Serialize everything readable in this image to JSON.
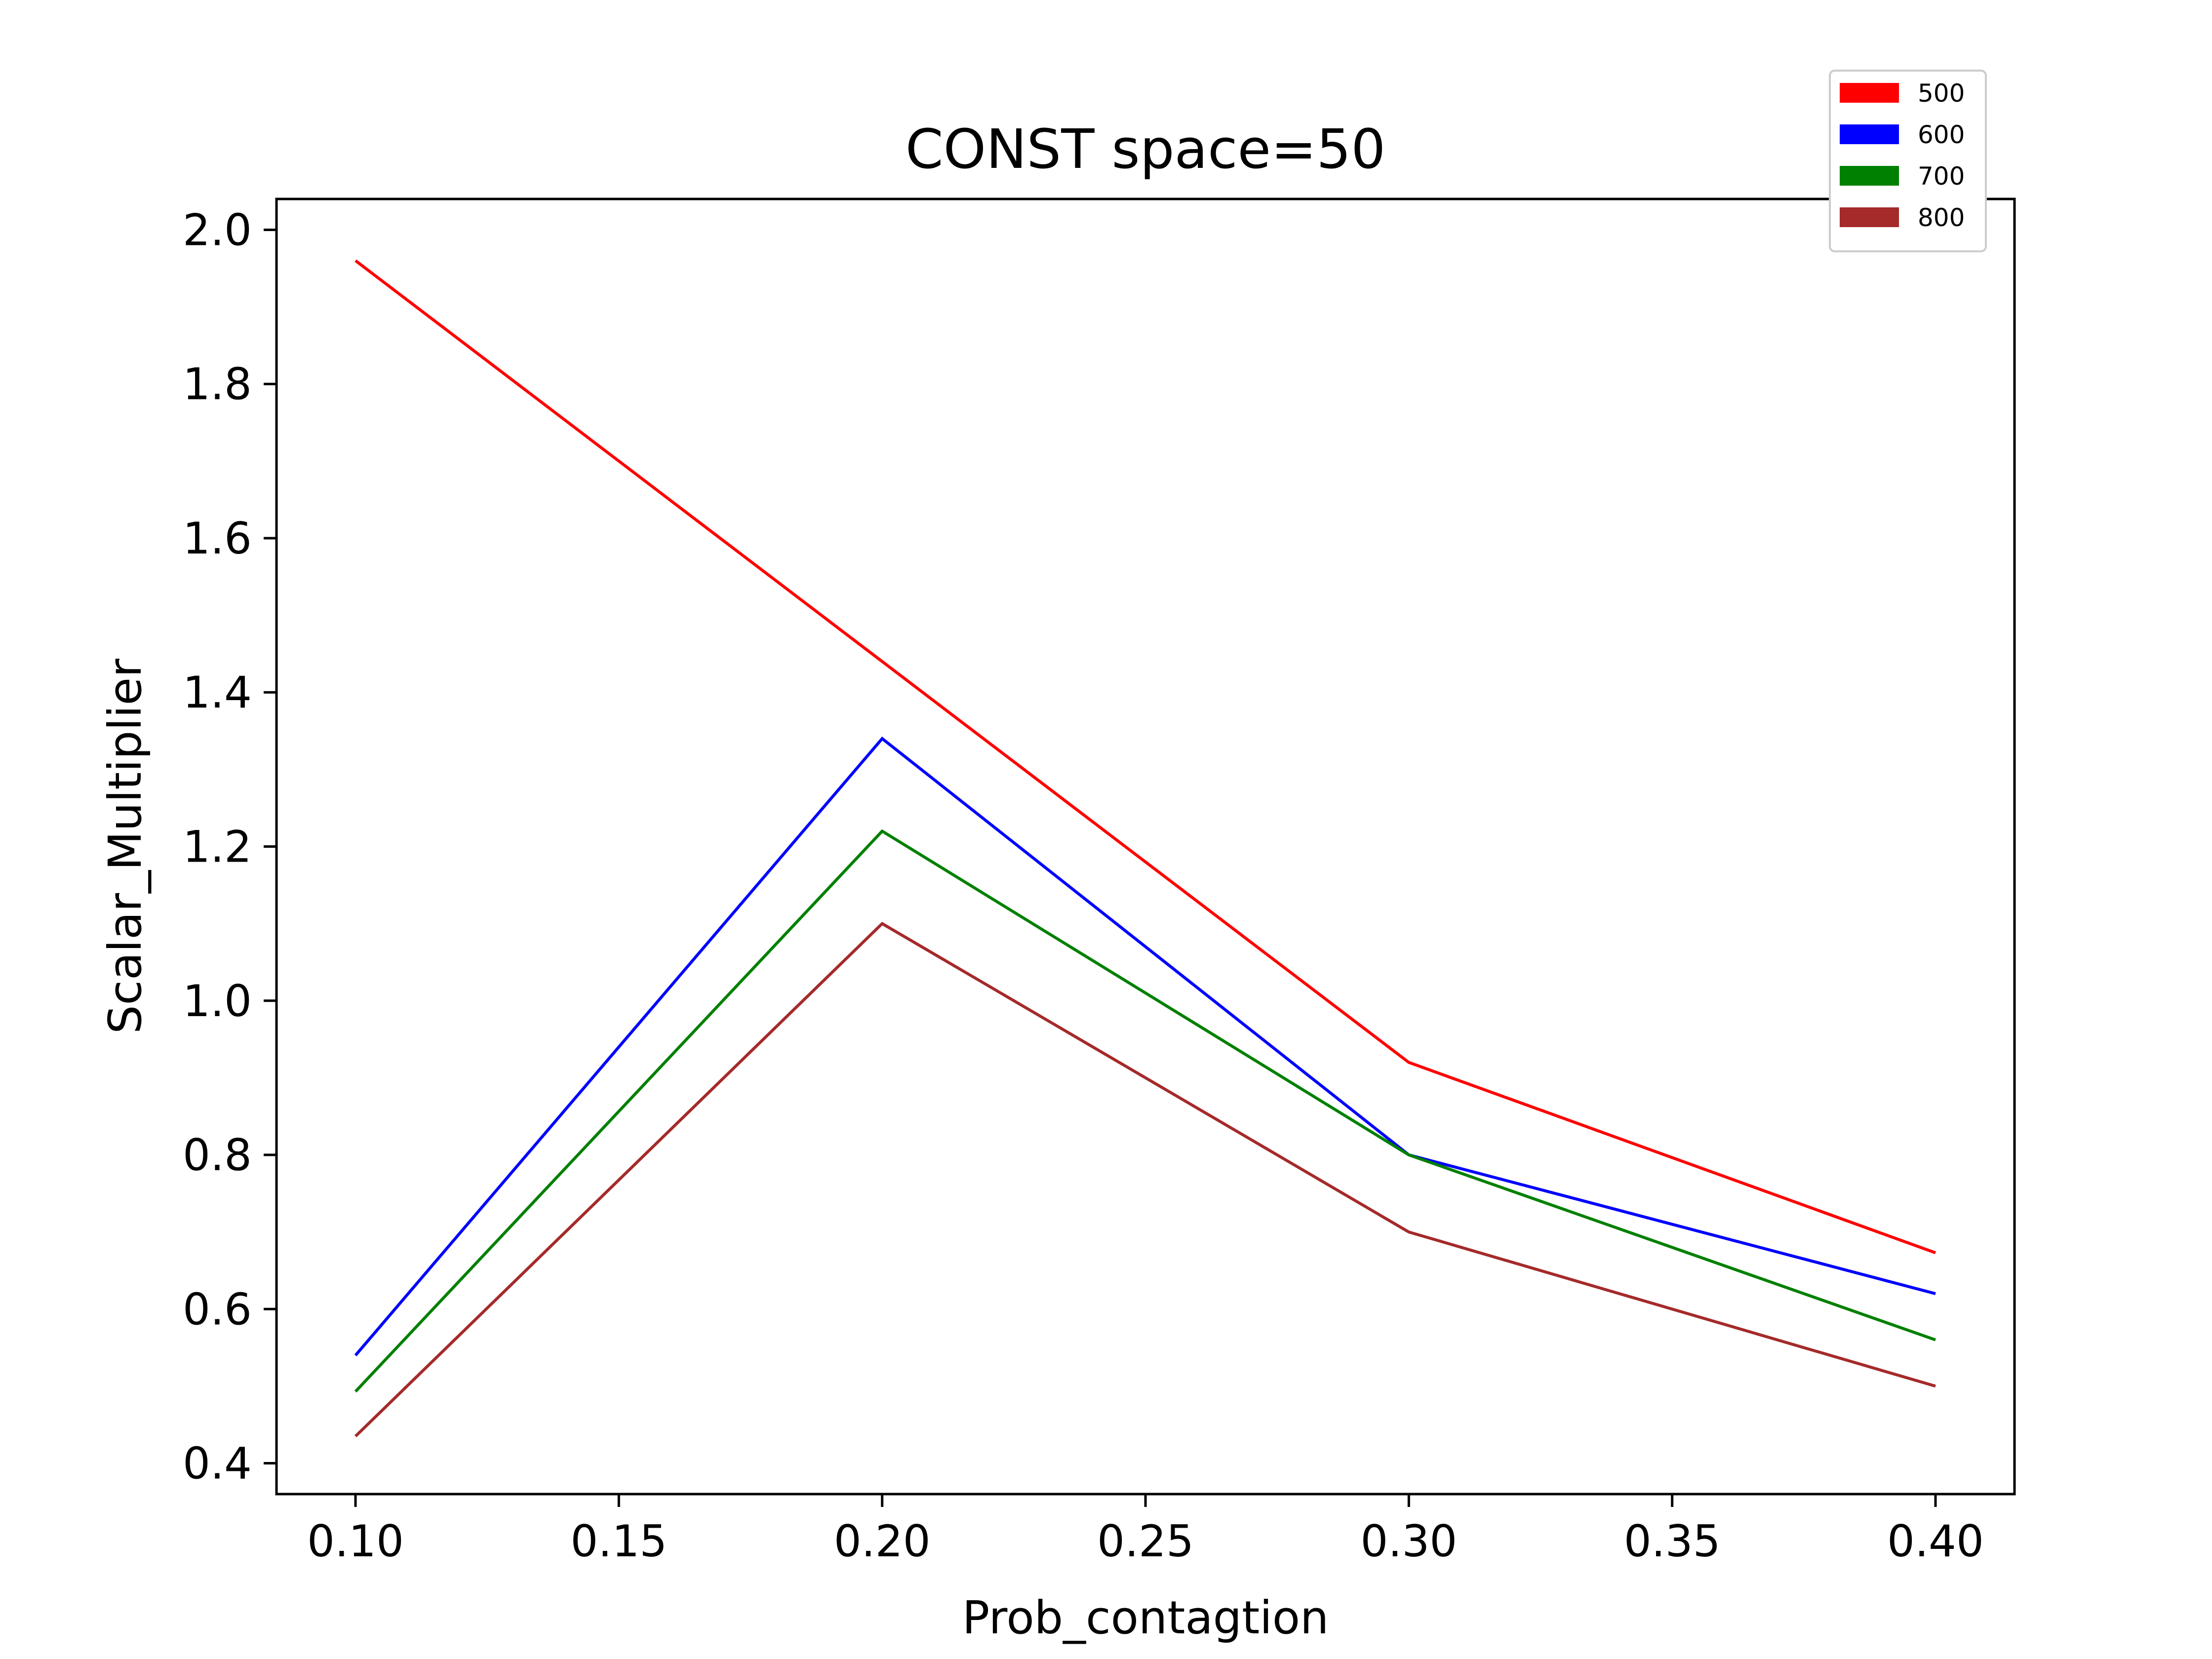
{
  "chart_data": {
    "type": "line",
    "title": "CONST space=50",
    "xlabel": "Prob_contagtion",
    "ylabel": "Scalar_Multiplier",
    "x": [
      0.1,
      0.2,
      0.3,
      0.4
    ],
    "xticks": [
      "0.10",
      "0.15",
      "0.20",
      "0.25",
      "0.30",
      "0.35",
      "0.40"
    ],
    "xtick_values": [
      0.1,
      0.15,
      0.2,
      0.25,
      0.3,
      0.35,
      0.4
    ],
    "yticks": [
      "0.4",
      "0.6",
      "0.8",
      "1.0",
      "1.2",
      "1.4",
      "1.6",
      "1.8",
      "2.0"
    ],
    "ytick_values": [
      0.4,
      0.6,
      0.8,
      1.0,
      1.2,
      1.4,
      1.6,
      1.8,
      2.0
    ],
    "xlim": [
      0.085,
      0.415
    ],
    "ylim": [
      0.36,
      2.04
    ],
    "grid": false,
    "legend_position": "top-right",
    "series": [
      {
        "name": "500",
        "color": "#ff0000",
        "values": [
          1.96,
          1.44,
          0.92,
          0.673
        ]
      },
      {
        "name": "600",
        "color": "#0000ff",
        "values": [
          0.54,
          1.34,
          0.8,
          0.62
        ]
      },
      {
        "name": "700",
        "color": "#008000",
        "values": [
          0.493,
          1.22,
          0.8,
          0.56
        ]
      },
      {
        "name": "800",
        "color": "#a52a2a",
        "values": [
          0.435,
          1.1,
          0.7,
          0.5
        ]
      }
    ]
  }
}
